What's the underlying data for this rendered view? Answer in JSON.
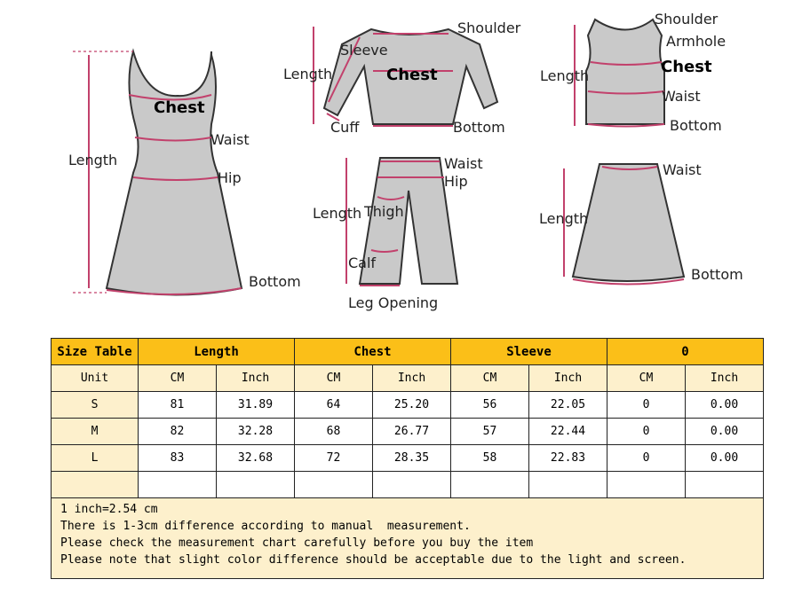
{
  "diagrams": {
    "dress": {
      "chest": "Chest",
      "waist": "Waist",
      "length": "Length",
      "hip": "Hip",
      "bottom": "Bottom"
    },
    "top": {
      "shoulder": "Shoulder",
      "sleeve": "Sleeve",
      "length": "Length",
      "chest": "Chest",
      "cuff": "Cuff",
      "bottom": "Bottom"
    },
    "tank": {
      "shoulder": "Shoulder",
      "armhole": "Armhole",
      "length": "Length",
      "chest": "Chest",
      "waist": "Waist",
      "bottom": "Bottom"
    },
    "pants": {
      "waist": "Waist",
      "hip": "Hip",
      "length": "Length",
      "thigh": "Thigh",
      "calf": "Calf",
      "leg_opening": "Leg Opening"
    },
    "skirt": {
      "waist": "Waist",
      "length": "Length",
      "bottom": "Bottom"
    }
  },
  "colors": {
    "header": "#fbbf18",
    "light": "#fdf0cc",
    "measure": "#c2416c"
  },
  "table": {
    "headers": [
      "Size Table",
      "Length",
      "Chest",
      "Sleeve",
      "0"
    ],
    "units": [
      "Unit",
      "CM",
      "Inch",
      "CM",
      "Inch",
      "CM",
      "Inch",
      "CM",
      "Inch"
    ],
    "rows": [
      [
        "S",
        "81",
        "31.89",
        "64",
        "25.20",
        "56",
        "22.05",
        "0",
        "0.00"
      ],
      [
        "M",
        "82",
        "32.28",
        "68",
        "26.77",
        "57",
        "22.44",
        "0",
        "0.00"
      ],
      [
        "L",
        "83",
        "32.68",
        "72",
        "28.35",
        "58",
        "22.83",
        "0",
        "0.00"
      ]
    ],
    "notes": [
      "1 inch=2.54 cm",
      "There is 1-3cm difference according to manual  measurement.",
      "Please check the measurement chart carefully before you buy the item",
      "Please note that slight color difference should be acceptable due to the light and screen."
    ]
  }
}
